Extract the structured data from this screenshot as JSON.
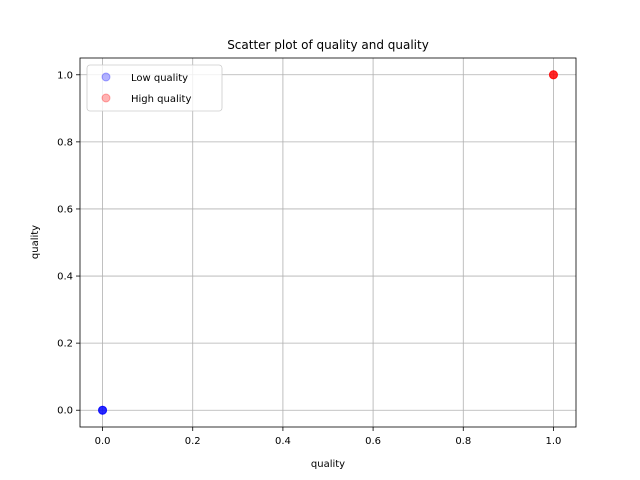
{
  "chart_data": {
    "type": "scatter",
    "title": "Scatter plot of quality and quality",
    "xlabel": "quality",
    "ylabel": "quality",
    "xlim": [
      -0.05,
      1.05
    ],
    "ylim": [
      -0.05,
      1.05
    ],
    "xticks": [
      "0.0",
      "0.2",
      "0.4",
      "0.6",
      "0.8",
      "1.0"
    ],
    "yticks": [
      "0.0",
      "0.2",
      "0.4",
      "0.6",
      "0.8",
      "1.0"
    ],
    "grid": true,
    "legend_position": "upper-left",
    "series": [
      {
        "name": "Low quality",
        "color": "#0000ff",
        "points": [
          [
            0,
            0
          ],
          [
            0,
            0
          ],
          [
            0,
            0
          ],
          [
            0,
            0
          ],
          [
            0,
            0
          ]
        ]
      },
      {
        "name": "High quality",
        "color": "#ff0000",
        "points": [
          [
            1,
            1
          ],
          [
            1,
            1
          ],
          [
            1,
            1
          ],
          [
            1,
            1
          ],
          [
            1,
            1
          ]
        ]
      }
    ]
  }
}
